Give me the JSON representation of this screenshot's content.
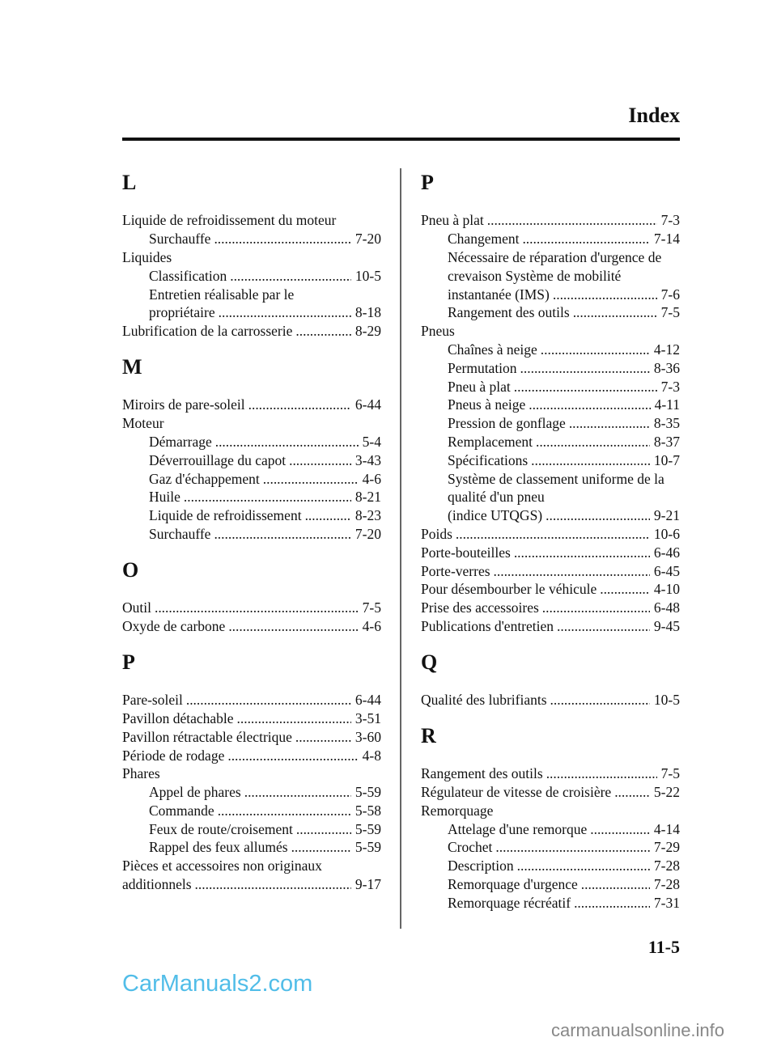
{
  "header": {
    "title": "Index"
  },
  "page_number": "11-5",
  "watermarks": {
    "top": "CarManuals2.com",
    "bottom": "carmanualsonline.info"
  },
  "columns": [
    [
      {
        "type": "heading",
        "text": "L"
      },
      {
        "text": "Liquide de refroidissement du moteur",
        "indent": 0
      },
      {
        "text": "Surchauffe",
        "page": "7-20",
        "indent": 1
      },
      {
        "text": "Liquides",
        "indent": 0
      },
      {
        "text": "Classification",
        "page": "10-5",
        "indent": 1
      },
      {
        "text": "Entretien réalisable par le",
        "indent": 1
      },
      {
        "text": "propriétaire",
        "page": "8-18",
        "indent": 1
      },
      {
        "text": "Lubrification de la carrosserie",
        "page": "8-29",
        "indent": 0
      },
      {
        "type": "heading",
        "text": "M"
      },
      {
        "text": "Miroirs de pare-soleil",
        "page": "6-44",
        "indent": 0
      },
      {
        "text": "Moteur",
        "indent": 0
      },
      {
        "text": "Démarrage",
        "page": "5-4",
        "indent": 1
      },
      {
        "text": "Déverrouillage du capot",
        "page": "3-43",
        "indent": 1
      },
      {
        "text": "Gaz d'échappement",
        "page": "4-6",
        "indent": 1
      },
      {
        "text": "Huile",
        "page": "8-21",
        "indent": 1
      },
      {
        "text": "Liquide de refroidissement",
        "page": "8-23",
        "indent": 1
      },
      {
        "text": "Surchauffe",
        "page": "7-20",
        "indent": 1
      },
      {
        "type": "heading",
        "text": "O"
      },
      {
        "text": "Outil",
        "page": "7-5",
        "indent": 0
      },
      {
        "text": "Oxyde de carbone",
        "page": "4-6",
        "indent": 0
      },
      {
        "type": "heading",
        "text": "P"
      },
      {
        "text": "Pare-soleil",
        "page": "6-44",
        "indent": 0
      },
      {
        "text": "Pavillon détachable",
        "page": "3-51",
        "indent": 0
      },
      {
        "text": "Pavillon rétractable électrique",
        "page": "3-60",
        "indent": 0
      },
      {
        "text": "Période de rodage",
        "page": "4-8",
        "indent": 0
      },
      {
        "text": "Phares",
        "indent": 0
      },
      {
        "text": "Appel de phares",
        "page": "5-59",
        "indent": 1
      },
      {
        "text": "Commande",
        "page": "5-58",
        "indent": 1
      },
      {
        "text": "Feux de route/croisement",
        "page": "5-59",
        "indent": 1
      },
      {
        "text": "Rappel des feux allumés",
        "page": "5-59",
        "indent": 1
      },
      {
        "text": "Pièces et accessoires non originaux",
        "indent": 0
      },
      {
        "text": "additionnels",
        "page": "9-17",
        "indent": 0
      }
    ],
    [
      {
        "type": "heading",
        "text": "P"
      },
      {
        "text": "Pneu à plat",
        "page": "7-3",
        "indent": 0
      },
      {
        "text": "Changement",
        "page": "7-14",
        "indent": 1
      },
      {
        "text": "Nécessaire de réparation d'urgence de",
        "indent": 1
      },
      {
        "text": "crevaison Système de mobilité",
        "indent": 1
      },
      {
        "text": "instantanée (IMS)",
        "page": "7-6",
        "indent": 1
      },
      {
        "text": "Rangement des outils",
        "page": "7-5",
        "indent": 1
      },
      {
        "text": "Pneus",
        "indent": 0
      },
      {
        "text": "Chaînes à neige",
        "page": "4-12",
        "indent": 1
      },
      {
        "text": "Permutation",
        "page": "8-36",
        "indent": 1
      },
      {
        "text": "Pneu à plat",
        "page": "7-3",
        "indent": 1
      },
      {
        "text": "Pneus à neige",
        "page": "4-11",
        "indent": 1
      },
      {
        "text": "Pression de gonflage",
        "page": "8-35",
        "indent": 1
      },
      {
        "text": "Remplacement",
        "page": "8-37",
        "indent": 1
      },
      {
        "text": "Spécifications",
        "page": "10-7",
        "indent": 1
      },
      {
        "text": "Système de classement uniforme de la",
        "indent": 1
      },
      {
        "text": "qualité d'un pneu",
        "indent": 1
      },
      {
        "text": "(indice UTQGS)",
        "page": "9-21",
        "indent": 1
      },
      {
        "text": "Poids",
        "page": "10-6",
        "indent": 0
      },
      {
        "text": "Porte-bouteilles",
        "page": "6-46",
        "indent": 0
      },
      {
        "text": "Porte-verres",
        "page": "6-45",
        "indent": 0
      },
      {
        "text": "Pour désembourber le véhicule",
        "page": "4-10",
        "indent": 0
      },
      {
        "text": "Prise des accessoires",
        "page": "6-48",
        "indent": 0
      },
      {
        "text": "Publications d'entretien",
        "page": "9-45",
        "indent": 0
      },
      {
        "type": "heading",
        "text": "Q"
      },
      {
        "text": "Qualité des lubrifiants",
        "page": "10-5",
        "indent": 0
      },
      {
        "type": "heading",
        "text": "R"
      },
      {
        "text": "Rangement des outils",
        "page": "7-5",
        "indent": 0
      },
      {
        "text": "Régulateur de vitesse de croisière",
        "page": "5-22",
        "indent": 0
      },
      {
        "text": "Remorquage",
        "indent": 0
      },
      {
        "text": "Attelage d'une remorque",
        "page": "4-14",
        "indent": 1
      },
      {
        "text": "Crochet",
        "page": "7-29",
        "indent": 1
      },
      {
        "text": "Description",
        "page": "7-28",
        "indent": 1
      },
      {
        "text": "Remorquage d'urgence",
        "page": "7-28",
        "indent": 1
      },
      {
        "text": "Remorquage récréatif",
        "page": "7-31",
        "indent": 1
      }
    ]
  ]
}
